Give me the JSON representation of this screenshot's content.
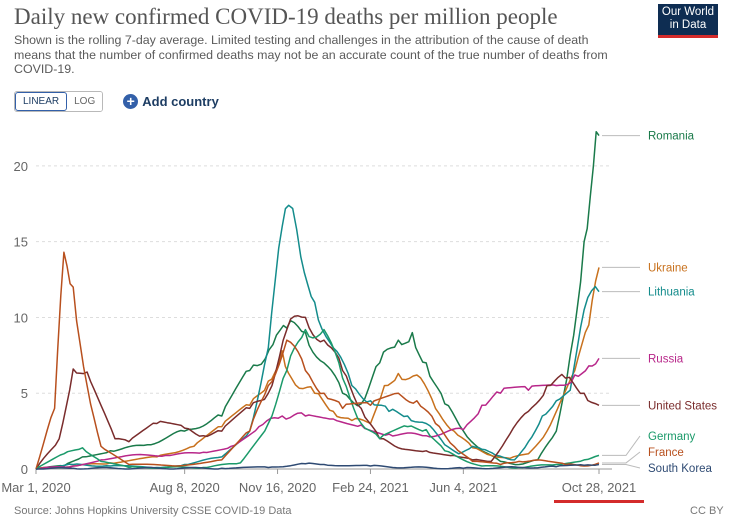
{
  "header": {
    "title": "Daily new confirmed COVID-19 deaths per million people",
    "subtitle": "Shown is the rolling 7-day average. Limited testing and challenges in the attribution of the cause of death means that the number of confirmed deaths may not be an accurate count of the true number of deaths from COVID-19.",
    "logo_line1": "Our World",
    "logo_line2": "in Data"
  },
  "controls": {
    "linear_label": "LINEAR",
    "log_label": "LOG",
    "add_country_label": "Add country",
    "active_scale": "linear"
  },
  "footer": {
    "source": "Source: Johns Hopkins University CSSE COVID-19 Data",
    "license": "CC BY"
  },
  "chart_data": {
    "type": "line",
    "x_ticks": [
      "Mar 1, 2020",
      "Aug 8, 2020",
      "Nov 16, 2020",
      "Feb 24, 2021",
      "Jun 4, 2021",
      "Oct 28, 2021"
    ],
    "x_tick_days": [
      0,
      160,
      260,
      360,
      460,
      606
    ],
    "x_range_days": [
      0,
      620
    ],
    "y_ticks": [
      0,
      5,
      10,
      15,
      20
    ],
    "ylim": [
      0,
      22.5
    ],
    "grid": true,
    "highlight_color": "#d42b2b",
    "series": [
      {
        "name": "Romania",
        "color": "#1a7a4a",
        "points": [
          [
            0,
            0
          ],
          [
            30,
            0.2
          ],
          [
            50,
            0.8
          ],
          [
            80,
            1.2
          ],
          [
            120,
            1.6
          ],
          [
            160,
            2.5
          ],
          [
            200,
            3.5
          ],
          [
            230,
            6.5
          ],
          [
            255,
            8.2
          ],
          [
            270,
            9.3
          ],
          [
            290,
            9.0
          ],
          [
            310,
            7.0
          ],
          [
            330,
            5.0
          ],
          [
            350,
            4.3
          ],
          [
            370,
            7.0
          ],
          [
            390,
            8.5
          ],
          [
            405,
            9.0
          ],
          [
            420,
            7.0
          ],
          [
            440,
            4.3
          ],
          [
            460,
            2.5
          ],
          [
            480,
            1.2
          ],
          [
            500,
            0.5
          ],
          [
            520,
            0.3
          ],
          [
            540,
            0.6
          ],
          [
            560,
            2.5
          ],
          [
            575,
            7.5
          ],
          [
            590,
            15.0
          ],
          [
            600,
            20.0
          ],
          [
            606,
            22.0
          ]
        ]
      },
      {
        "name": "Ukraine",
        "color": "#c8711d",
        "points": [
          [
            0,
            0
          ],
          [
            40,
            0.2
          ],
          [
            80,
            0.4
          ],
          [
            130,
            0.8
          ],
          [
            170,
            1.5
          ],
          [
            200,
            2.8
          ],
          [
            230,
            4.2
          ],
          [
            250,
            5.8
          ],
          [
            265,
            7.8
          ],
          [
            275,
            6.0
          ],
          [
            300,
            5.0
          ],
          [
            320,
            3.8
          ],
          [
            340,
            3.2
          ],
          [
            360,
            3.0
          ],
          [
            375,
            5.5
          ],
          [
            390,
            6.3
          ],
          [
            410,
            6.2
          ],
          [
            430,
            4.0
          ],
          [
            450,
            2.5
          ],
          [
            470,
            1.4
          ],
          [
            490,
            0.9
          ],
          [
            510,
            0.7
          ],
          [
            530,
            1.0
          ],
          [
            550,
            2.5
          ],
          [
            565,
            4.5
          ],
          [
            580,
            6.5
          ],
          [
            595,
            9.5
          ],
          [
            606,
            13.3
          ]
        ]
      },
      {
        "name": "Lithuania",
        "color": "#148c8c",
        "points": [
          [
            0,
            0
          ],
          [
            40,
            0.3
          ],
          [
            80,
            0.2
          ],
          [
            130,
            0.1
          ],
          [
            160,
            0.3
          ],
          [
            200,
            0.8
          ],
          [
            230,
            2.5
          ],
          [
            250,
            8.0
          ],
          [
            265,
            16.0
          ],
          [
            272,
            17.4
          ],
          [
            285,
            14.0
          ],
          [
            300,
            11.0
          ],
          [
            320,
            8.0
          ],
          [
            340,
            5.5
          ],
          [
            360,
            4.5
          ],
          [
            380,
            3.8
          ],
          [
            400,
            3.5
          ],
          [
            420,
            3.0
          ],
          [
            440,
            1.6
          ],
          [
            455,
            1.0
          ],
          [
            470,
            1.5
          ],
          [
            480,
            1.3
          ],
          [
            495,
            0.9
          ],
          [
            515,
            0.6
          ],
          [
            530,
            1.8
          ],
          [
            545,
            3.5
          ],
          [
            560,
            4.5
          ],
          [
            575,
            5.2
          ],
          [
            590,
            10.5
          ],
          [
            606,
            11.7
          ]
        ]
      },
      {
        "name": "Russia",
        "color": "#b8278a",
        "points": [
          [
            0,
            0
          ],
          [
            40,
            0.2
          ],
          [
            70,
            0.6
          ],
          [
            100,
            0.9
          ],
          [
            140,
            0.9
          ],
          [
            180,
            1.1
          ],
          [
            210,
            1.5
          ],
          [
            240,
            2.8
          ],
          [
            265,
            3.5
          ],
          [
            290,
            3.5
          ],
          [
            320,
            3.3
          ],
          [
            350,
            2.9
          ],
          [
            380,
            2.3
          ],
          [
            420,
            2.2
          ],
          [
            460,
            2.6
          ],
          [
            480,
            4.2
          ],
          [
            500,
            5.0
          ],
          [
            530,
            5.2
          ],
          [
            560,
            5.5
          ],
          [
            580,
            6.2
          ],
          [
            595,
            6.8
          ],
          [
            606,
            7.3
          ]
        ]
      },
      {
        "name": "United States",
        "color": "#7a2c2c",
        "points": [
          [
            0,
            0
          ],
          [
            25,
            2.0
          ],
          [
            40,
            6.6
          ],
          [
            55,
            6.4
          ],
          [
            70,
            4.2
          ],
          [
            85,
            2.0
          ],
          [
            100,
            1.8
          ],
          [
            130,
            3.0
          ],
          [
            160,
            2.7
          ],
          [
            180,
            2.2
          ],
          [
            200,
            2.5
          ],
          [
            230,
            4.0
          ],
          [
            250,
            5.0
          ],
          [
            270,
            9.2
          ],
          [
            290,
            10.0
          ],
          [
            310,
            8.5
          ],
          [
            330,
            6.5
          ],
          [
            350,
            4.0
          ],
          [
            370,
            2.0
          ],
          [
            390,
            1.4
          ],
          [
            420,
            1.2
          ],
          [
            450,
            0.9
          ],
          [
            470,
            0.6
          ],
          [
            490,
            0.5
          ],
          [
            510,
            2.3
          ],
          [
            530,
            3.8
          ],
          [
            550,
            5.5
          ],
          [
            570,
            6.0
          ],
          [
            590,
            5.0
          ],
          [
            606,
            4.2
          ]
        ]
      },
      {
        "name": "Germany",
        "color": "#1b9a6a",
        "points": [
          [
            0,
            0
          ],
          [
            30,
            1.0
          ],
          [
            50,
            1.4
          ],
          [
            70,
            0.5
          ],
          [
            100,
            0.1
          ],
          [
            180,
            0.1
          ],
          [
            220,
            0.4
          ],
          [
            250,
            3.0
          ],
          [
            270,
            6.5
          ],
          [
            290,
            9.2
          ],
          [
            310,
            9.2
          ],
          [
            330,
            6.0
          ],
          [
            350,
            3.0
          ],
          [
            370,
            2.0
          ],
          [
            400,
            2.8
          ],
          [
            420,
            2.6
          ],
          [
            440,
            1.2
          ],
          [
            460,
            0.6
          ],
          [
            480,
            0.2
          ],
          [
            520,
            0.1
          ],
          [
            560,
            0.3
          ],
          [
            590,
            0.6
          ],
          [
            606,
            0.9
          ]
        ]
      },
      {
        "name": "France",
        "color": "#b8501e",
        "points": [
          [
            0,
            0
          ],
          [
            20,
            4.0
          ],
          [
            30,
            14.3
          ],
          [
            40,
            12.0
          ],
          [
            55,
            5.5
          ],
          [
            70,
            1.5
          ],
          [
            100,
            0.3
          ],
          [
            150,
            0.2
          ],
          [
            200,
            0.6
          ],
          [
            230,
            2.5
          ],
          [
            250,
            5.5
          ],
          [
            270,
            8.5
          ],
          [
            290,
            6.5
          ],
          [
            310,
            5.0
          ],
          [
            330,
            4.0
          ],
          [
            360,
            4.2
          ],
          [
            390,
            5.0
          ],
          [
            410,
            4.5
          ],
          [
            430,
            3.0
          ],
          [
            450,
            1.5
          ],
          [
            470,
            0.5
          ],
          [
            500,
            0.3
          ],
          [
            520,
            0.5
          ],
          [
            540,
            0.6
          ],
          [
            570,
            0.3
          ],
          [
            590,
            0.2
          ],
          [
            606,
            0.4
          ]
        ]
      },
      {
        "name": "South Korea",
        "color": "#2e4a73",
        "points": [
          [
            0,
            0
          ],
          [
            40,
            0.05
          ],
          [
            200,
            0.05
          ],
          [
            250,
            0.1
          ],
          [
            290,
            0.35
          ],
          [
            310,
            0.3
          ],
          [
            360,
            0.2
          ],
          [
            400,
            0.1
          ],
          [
            460,
            0.05
          ],
          [
            520,
            0.1
          ],
          [
            560,
            0.15
          ],
          [
            590,
            0.25
          ],
          [
            606,
            0.3
          ]
        ]
      }
    ]
  }
}
